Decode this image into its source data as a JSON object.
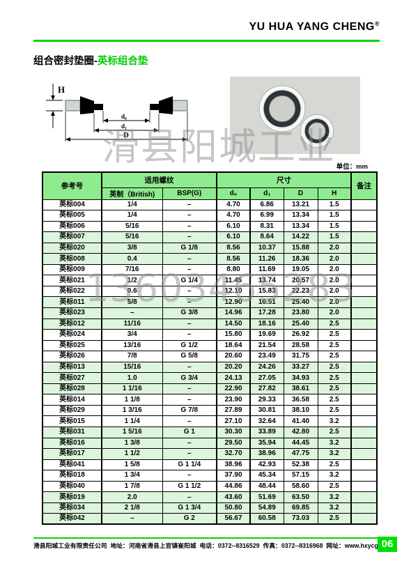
{
  "brand": {
    "logo": "YU HUA YANG CHENG",
    "reg_mark": "®"
  },
  "page": {
    "title_black": "组合密封垫圈-",
    "title_green": "英标组合垫",
    "unit_label": "单位：mm",
    "page_number": "06"
  },
  "watermarks": {
    "company": "滑县阳城工业",
    "phone": "13603465283"
  },
  "diagram_labels": {
    "h": "H",
    "d0": "d₀",
    "d1": "d₁",
    "D": "D"
  },
  "table": {
    "headers": {
      "ref": "参考号",
      "thread_group": "适用螺纹",
      "size_group": "尺寸",
      "remark": "备注",
      "british": "英制（British)",
      "bsp": "BSP(G)",
      "d0": "d₀",
      "d1": "d₁",
      "D": "D",
      "H": "H"
    },
    "rows": [
      {
        "ref": "英标004",
        "british": "1/4",
        "bsp": "–",
        "d0": "4.70",
        "d1": "6.86",
        "D": "13.21",
        "H": "1.5",
        "remark": "",
        "shade": false
      },
      {
        "ref": "英标005",
        "british": "1/4",
        "bsp": "–",
        "d0": "4.70",
        "d1": "6.99",
        "D": "13.34",
        "H": "1.5",
        "remark": "",
        "shade": false
      },
      {
        "ref": "英标006",
        "british": "5/16",
        "bsp": "–",
        "d0": "6.10",
        "d1": "8.31",
        "D": "13.34",
        "H": "1.5",
        "remark": "",
        "shade": false
      },
      {
        "ref": "英标007",
        "british": "5/16",
        "bsp": "–",
        "d0": "6.10",
        "d1": "8.64",
        "D": "14.22",
        "H": "1.5",
        "remark": "",
        "shade": true
      },
      {
        "ref": "英标020",
        "british": "3/8",
        "bsp": "G 1/8",
        "d0": "8.56",
        "d1": "10.37",
        "D": "15.88",
        "H": "2.0",
        "remark": "",
        "shade": true
      },
      {
        "ref": "英标008",
        "british": "0.4",
        "bsp": "–",
        "d0": "8.56",
        "d1": "11.26",
        "D": "18.36",
        "H": "2.0",
        "remark": "",
        "shade": true
      },
      {
        "ref": "英标009",
        "british": "7/16",
        "bsp": "–",
        "d0": "8.80",
        "d1": "11.69",
        "D": "19.05",
        "H": "2.0",
        "remark": "",
        "shade": false
      },
      {
        "ref": "英标021",
        "british": "1/2",
        "bsp": "G 1/4",
        "d0": "11.45",
        "d1": "13.74",
        "D": "20.57",
        "H": "2.0",
        "remark": "",
        "shade": false
      },
      {
        "ref": "英标022",
        "british": "0.6",
        "bsp": "–",
        "d0": "12.10",
        "d1": "15.83",
        "D": "22.23",
        "H": "2.0",
        "remark": "",
        "shade": false
      },
      {
        "ref": "英标011",
        "british": "5/8",
        "bsp": "–",
        "d0": "12.90",
        "d1": "16.51",
        "D": "25.40",
        "H": "2.0",
        "remark": "",
        "shade": true
      },
      {
        "ref": "英标023",
        "british": "–",
        "bsp": "G 3/8",
        "d0": "14.96",
        "d1": "17.28",
        "D": "23.80",
        "H": "2.0",
        "remark": "",
        "shade": true
      },
      {
        "ref": "英标012",
        "british": "11/16",
        "bsp": "–",
        "d0": "14.50",
        "d1": "18.16",
        "D": "25.40",
        "H": "2.5",
        "remark": "",
        "shade": true
      },
      {
        "ref": "英标024",
        "british": "3/4",
        "bsp": "–",
        "d0": "15.80",
        "d1": "19.69",
        "D": "26.92",
        "H": "2.5",
        "remark": "",
        "shade": false
      },
      {
        "ref": "英标025",
        "british": "13/16",
        "bsp": "G 1/2",
        "d0": "18.64",
        "d1": "21.54",
        "D": "28.58",
        "H": "2.5",
        "remark": "",
        "shade": false
      },
      {
        "ref": "英标026",
        "british": "7/8",
        "bsp": "G 5/8",
        "d0": "20.60",
        "d1": "23.49",
        "D": "31.75",
        "H": "2.5",
        "remark": "",
        "shade": false
      },
      {
        "ref": "英标013",
        "british": "15/16",
        "bsp": "–",
        "d0": "20.20",
        "d1": "24.26",
        "D": "33.27",
        "H": "2.5",
        "remark": "",
        "shade": true
      },
      {
        "ref": "英标027",
        "british": "1.0",
        "bsp": "G 3/4",
        "d0": "24.13",
        "d1": "27.05",
        "D": "34.93",
        "H": "2.5",
        "remark": "",
        "shade": true
      },
      {
        "ref": "英标028",
        "british": "1 1/16",
        "bsp": "–",
        "d0": "22.90",
        "d1": "27.82",
        "D": "38.61",
        "H": "2.5",
        "remark": "",
        "shade": true
      },
      {
        "ref": "英标014",
        "british": "1 1/8",
        "bsp": "–",
        "d0": "23.90",
        "d1": "29.33",
        "D": "36.58",
        "H": "2.5",
        "remark": "",
        "shade": false
      },
      {
        "ref": "英标029",
        "british": "1 3/16",
        "bsp": "G 7/8",
        "d0": "27.89",
        "d1": "30.81",
        "D": "38.10",
        "H": "2.5",
        "remark": "",
        "shade": false
      },
      {
        "ref": "英标015",
        "british": "1 1/4",
        "bsp": "–",
        "d0": "27.10",
        "d1": "32.64",
        "D": "41.40",
        "H": "3.2",
        "remark": "",
        "shade": false
      },
      {
        "ref": "英标031",
        "british": "1 5/16",
        "bsp": "G 1",
        "d0": "30.30",
        "d1": "33.89",
        "D": "42.80",
        "H": "2.5",
        "remark": "",
        "shade": true
      },
      {
        "ref": "英标016",
        "british": "1 3/8",
        "bsp": "–",
        "d0": "29.50",
        "d1": "35.94",
        "D": "44.45",
        "H": "3.2",
        "remark": "",
        "shade": true
      },
      {
        "ref": "英标017",
        "british": "1 1/2",
        "bsp": "–",
        "d0": "32.70",
        "d1": "38.96",
        "D": "47.75",
        "H": "3.2",
        "remark": "",
        "shade": true
      },
      {
        "ref": "英标041",
        "british": "1 5/8",
        "bsp": "G 1 1/4",
        "d0": "38.96",
        "d1": "42.93",
        "D": "52.38",
        "H": "2.5",
        "remark": "",
        "shade": false
      },
      {
        "ref": "英标018",
        "british": "1 3/4",
        "bsp": "–",
        "d0": "37.90",
        "d1": "45.34",
        "D": "57.15",
        "H": "3.2",
        "remark": "",
        "shade": false
      },
      {
        "ref": "英标040",
        "british": "1 7/8",
        "bsp": "G 1 1/2",
        "d0": "44.86",
        "d1": "48.44",
        "D": "58.60",
        "H": "2.5",
        "remark": "",
        "shade": false
      },
      {
        "ref": "英标019",
        "british": "2.0",
        "bsp": "–",
        "d0": "43.60",
        "d1": "51.69",
        "D": "63.50",
        "H": "3.2",
        "remark": "",
        "shade": true
      },
      {
        "ref": "英标034",
        "british": "2 1/8",
        "bsp": "G 1 3/4",
        "d0": "50.80",
        "d1": "54.89",
        "D": "69.85",
        "H": "3.2",
        "remark": "",
        "shade": true
      },
      {
        "ref": "英标042",
        "british": "–",
        "bsp": "G 2",
        "d0": "56.67",
        "d1": "60.58",
        "D": "73.03",
        "H": "2.5",
        "remark": "",
        "shade": true
      }
    ]
  },
  "footer": {
    "text": "滑县阳城工业有限责任公司  地址：河南省滑县上官镇崔阳城  电话：0372--8316529  传真：0372--8316968  网址：www.hxycgy.com"
  },
  "colors": {
    "accent_green": "#00d400",
    "header_green": "#8feb8f",
    "row_shade_green": "#dcf5dc"
  }
}
